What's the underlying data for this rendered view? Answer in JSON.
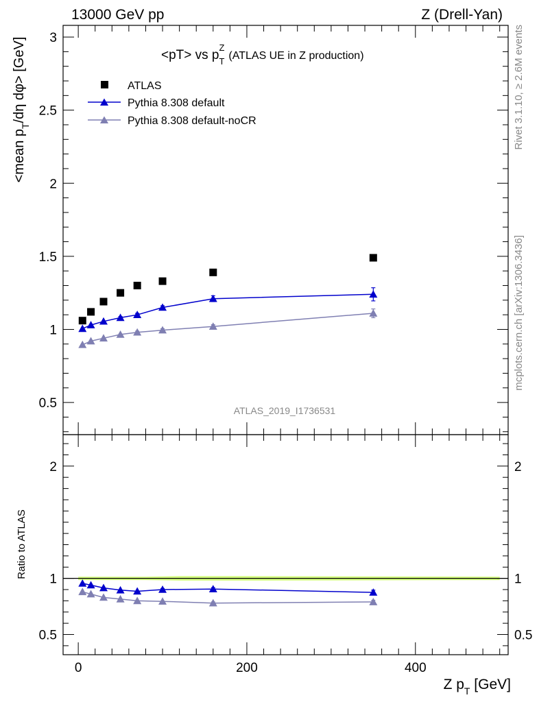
{
  "header": {
    "left": "13000 GeV pp",
    "right": "Z (Drell-Yan)"
  },
  "plot_title": {
    "main": "<pT> vs p",
    "sup": "Z",
    "sub": "T",
    "suffix": "(ATLAS UE in Z production)"
  },
  "side_labels": {
    "top": "Rivet 3.1.10, ≥ 2.6M events",
    "bottom": "mcplots.cern.ch [arXiv:1306.3436]"
  },
  "analysis_id": "ATLAS_2019_I1736531",
  "colors": {
    "atlas": "#000000",
    "default": "#0000cc",
    "nocr": "#7f7fb2",
    "band": "#ccff66"
  },
  "chart_data": [
    {
      "type": "line",
      "panel": "main",
      "ylabel": "<mean p_T/dη dφ> [GeV]",
      "ylabel_parts": [
        "<mean p",
        "T",
        "/dη dφ> [GeV]"
      ],
      "xlim": [
        -18,
        510
      ],
      "ylim": [
        0.28,
        3.08
      ],
      "yticks": [
        0.5,
        1,
        1.5,
        2,
        2.5,
        3
      ],
      "ytick_labels": [
        "0.5",
        "1",
        "1.5",
        "2",
        "2.5",
        "3"
      ],
      "legend": [
        "ATLAS",
        "Pythia 8.308 default",
        "Pythia 8.308 default-noCR"
      ],
      "legend_position": "top-left",
      "series": [
        {
          "name": "ATLAS",
          "marker": "square",
          "x": [
            5,
            15,
            30,
            50,
            70,
            100,
            160,
            350
          ],
          "y": [
            1.06,
            1.12,
            1.19,
            1.25,
            1.3,
            1.33,
            1.39,
            1.49
          ],
          "err": [
            0,
            0,
            0,
            0,
            0,
            0,
            0,
            0
          ]
        },
        {
          "name": "Pythia 8.308 default",
          "marker": "triangle",
          "x": [
            5,
            15,
            30,
            50,
            70,
            100,
            160,
            350
          ],
          "y": [
            1.005,
            1.03,
            1.055,
            1.08,
            1.1,
            1.15,
            1.21,
            1.24
          ],
          "err": [
            0.005,
            0.005,
            0.006,
            0.008,
            0.01,
            0.012,
            0.02,
            0.045
          ]
        },
        {
          "name": "Pythia 8.308 default-noCR",
          "marker": "triangle",
          "x": [
            5,
            15,
            30,
            50,
            70,
            100,
            160,
            350
          ],
          "y": [
            0.895,
            0.92,
            0.94,
            0.965,
            0.98,
            0.995,
            1.02,
            1.11
          ],
          "err": [
            0.005,
            0.005,
            0.006,
            0.007,
            0.008,
            0.01,
            0.012,
            0.03
          ]
        }
      ]
    },
    {
      "type": "line",
      "panel": "ratio",
      "ylabel": "Ratio to ATLAS",
      "xlabel": "Z p_T [GeV]",
      "xlabel_parts": [
        "Z p",
        "T",
        " [GeV]"
      ],
      "xlim": [
        -18,
        510
      ],
      "ylim": [
        0.32,
        2.28
      ],
      "yticks": [
        0.5,
        1,
        2
      ],
      "ytick_labels": [
        "0.5",
        "1",
        "2"
      ],
      "xticks": [
        0,
        200,
        400
      ],
      "xtick_labels": [
        "0",
        "200",
        "400"
      ],
      "band": {
        "x": [
          0,
          10,
          20,
          40,
          60,
          80,
          120,
          200,
          500
        ],
        "half_width": [
          0.015,
          0.015,
          0.015,
          0.015,
          0.015,
          0.015,
          0.02,
          0.02,
          0.015
        ]
      },
      "series": [
        {
          "name": "Pythia 8.308 default",
          "x": [
            5,
            15,
            30,
            50,
            70,
            100,
            160,
            350
          ],
          "y": [
            0.955,
            0.94,
            0.915,
            0.895,
            0.885,
            0.9,
            0.905,
            0.875
          ],
          "err": [
            0.005,
            0.005,
            0.006,
            0.007,
            0.008,
            0.01,
            0.012,
            0.02
          ]
        },
        {
          "name": "Pythia 8.308 default-noCR",
          "x": [
            5,
            15,
            30,
            50,
            70,
            100,
            160,
            350
          ],
          "y": [
            0.88,
            0.86,
            0.83,
            0.815,
            0.8,
            0.795,
            0.78,
            0.79
          ],
          "err": [
            0.005,
            0.005,
            0.006,
            0.007,
            0.008,
            0.008,
            0.01,
            0.015
          ]
        }
      ]
    }
  ]
}
